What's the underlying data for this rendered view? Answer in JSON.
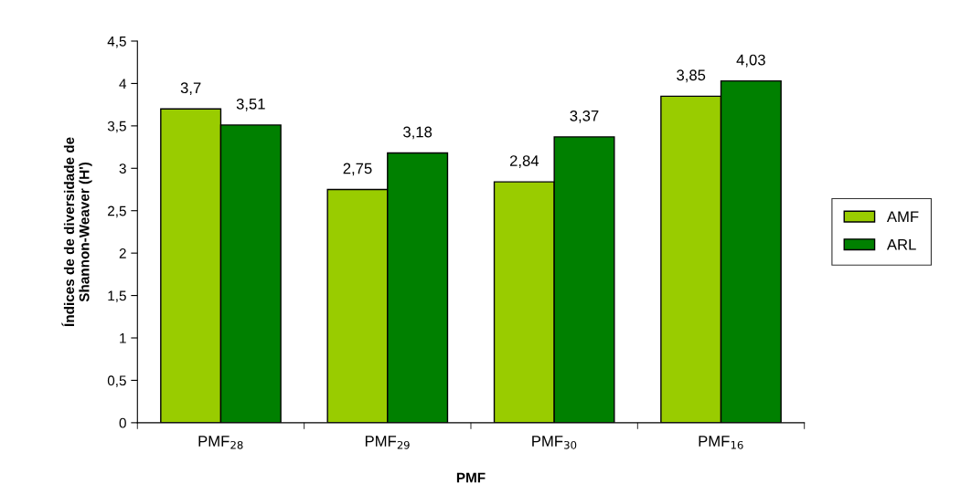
{
  "chart_data": {
    "type": "bar",
    "xlabel": "PMF",
    "ylabel": "Índices de de diversidade de\nShannon-Weaver (H')",
    "categories": [
      "PMF$_{28}$",
      "PMF$_{29}$",
      "PMF$_{30}$",
      "PMF$_{16}$"
    ],
    "series": [
      {
        "name": "AMF",
        "color": "#99cc00",
        "values": [
          3.7,
          2.75,
          2.84,
          3.85
        ],
        "value_labels": [
          "3,7",
          "2,75",
          "2,84",
          "3,85"
        ]
      },
      {
        "name": "ARL",
        "color": "#008000",
        "values": [
          3.51,
          3.18,
          3.37,
          4.03
        ],
        "value_labels": [
          "3,51",
          "3,18",
          "3,37",
          "4,03"
        ]
      }
    ],
    "ylim": [
      0,
      4.5
    ],
    "yticks": [
      0,
      {
        "value": 0.5,
        "label": "0,5"
      },
      1,
      {
        "value": 1.5,
        "label": "1,5"
      },
      2,
      {
        "value": 2.5,
        "label": "2,5"
      },
      3,
      {
        "value": 3.5,
        "label": "3,5"
      },
      4,
      {
        "value": 4.5,
        "label": "4,5"
      }
    ],
    "grid": false,
    "legend": "right"
  }
}
